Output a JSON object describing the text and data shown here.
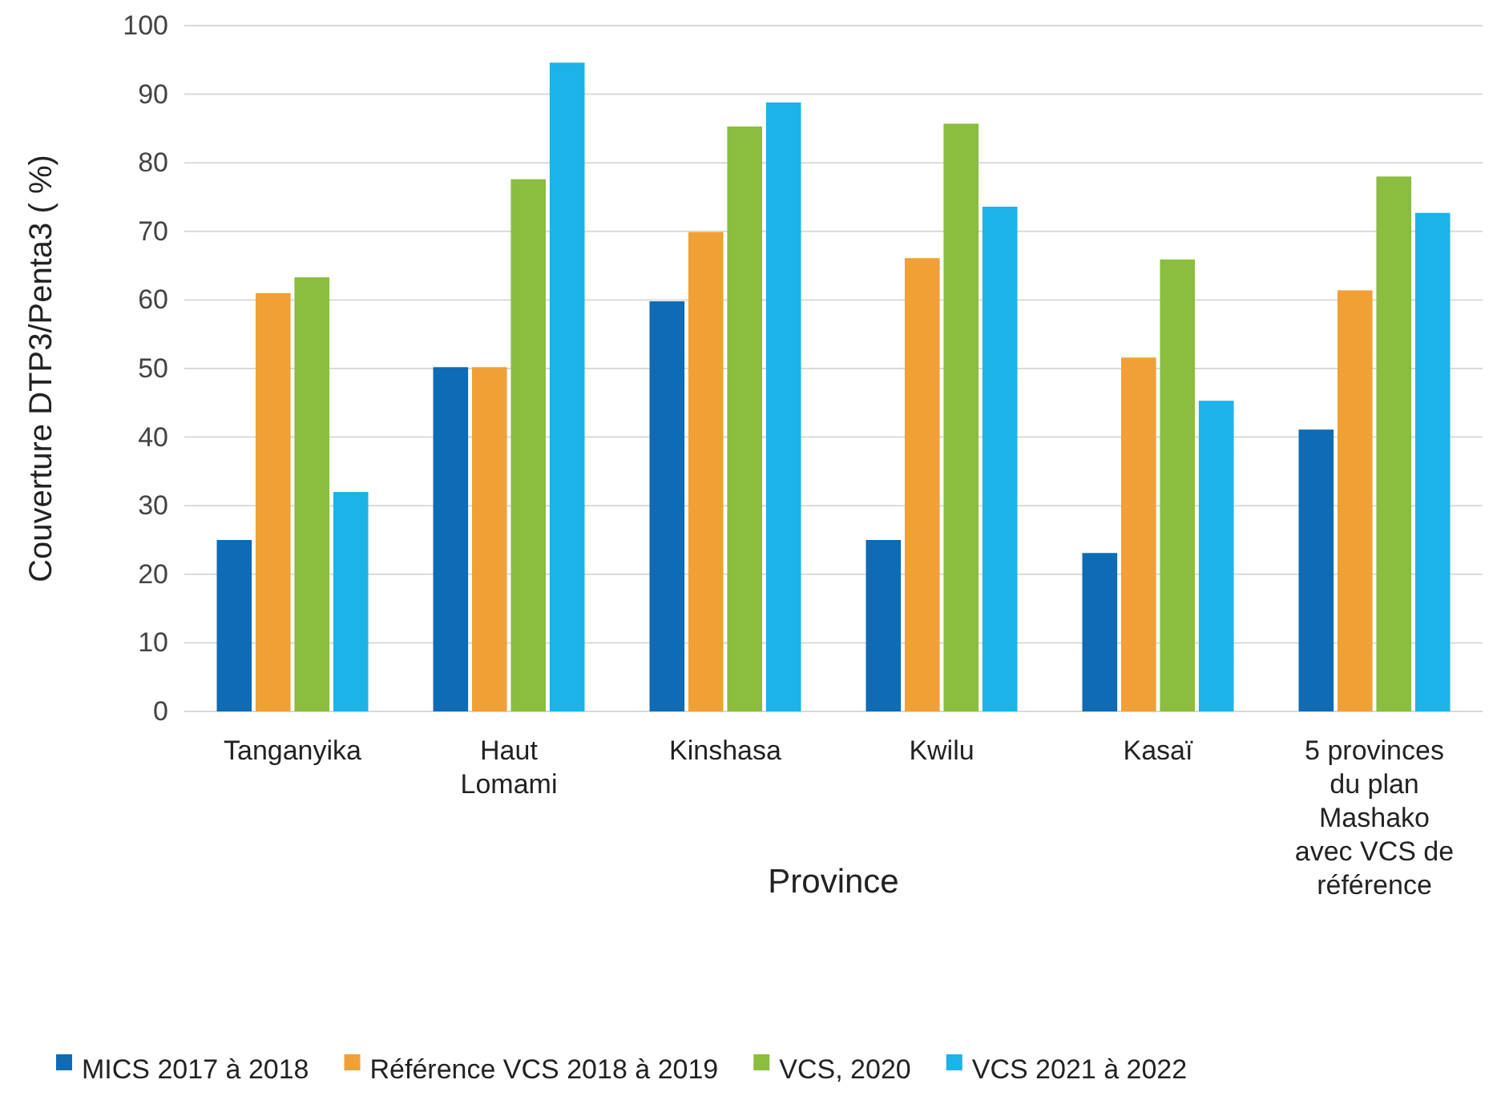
{
  "chart_data": {
    "type": "bar",
    "xlabel": "Province",
    "ylabel": "Couverture DTP3/Penta3 ( %)",
    "categories": [
      "Tanganyika",
      "Haut Lomami",
      "Kinshasa",
      "Kwilu",
      "Kasaï",
      "5 provinces du plan Mashako avec VCS de référence"
    ],
    "series": [
      {
        "name": "MICS 2017 à 2018",
        "color": "#0e6bb4",
        "values": [
          25,
          50.2,
          59.8,
          25,
          23.1,
          41.1
        ]
      },
      {
        "name": "Référence VCS 2018 à 2019",
        "color": "#f0a035",
        "values": [
          61,
          50.2,
          69.9,
          66.1,
          51.6,
          61.4
        ]
      },
      {
        "name": "VCS, 2020",
        "color": "#8bbd3f",
        "values": [
          63.3,
          77.6,
          85.3,
          85.7,
          65.9,
          78
        ]
      },
      {
        "name": "VCS 2021 à 2022",
        "color": "#1bb3e8",
        "values": [
          32,
          94.6,
          88.8,
          73.6,
          45.3,
          72.7
        ]
      }
    ],
    "ylim": [
      0,
      100
    ],
    "yticks": [
      0,
      10,
      20,
      30,
      40,
      50,
      60,
      70,
      80,
      90,
      100
    ],
    "grid": "y",
    "legend": "bottom"
  }
}
